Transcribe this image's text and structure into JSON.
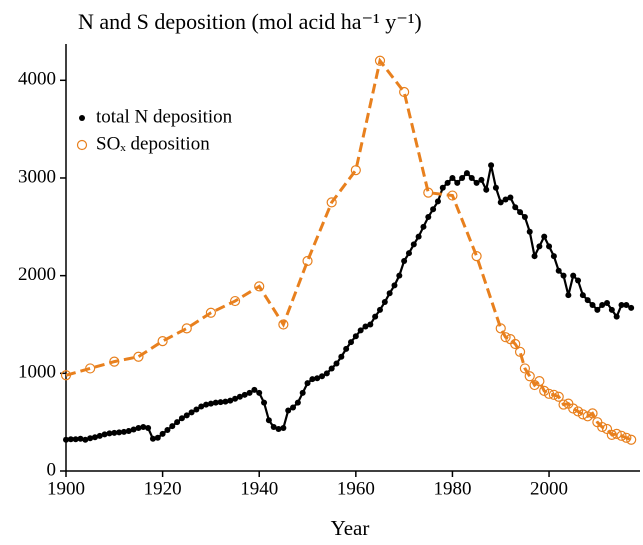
{
  "chart_data": {
    "type": "line",
    "title": "N and S deposition (mol acid ha⁻¹ y⁻¹)",
    "x_label": "Year",
    "xlim": [
      1900,
      2018
    ],
    "xticks": [
      1900,
      1920,
      1940,
      1960,
      1980,
      2000
    ],
    "ylim": [
      0,
      4300
    ],
    "yticks": [
      0,
      1000,
      2000,
      3000,
      4000
    ],
    "grid": false,
    "legend": "upper-left",
    "series": [
      {
        "name": "total N deposition",
        "color": "#000000",
        "marker": "filled",
        "line": "solid",
        "x": [
          1900,
          1901,
          1902,
          1903,
          1904,
          1905,
          1906,
          1907,
          1908,
          1909,
          1910,
          1911,
          1912,
          1913,
          1914,
          1915,
          1916,
          1917,
          1918,
          1919,
          1920,
          1921,
          1922,
          1923,
          1924,
          1925,
          1926,
          1927,
          1928,
          1929,
          1930,
          1931,
          1932,
          1933,
          1934,
          1935,
          1936,
          1937,
          1938,
          1939,
          1940,
          1941,
          1942,
          1943,
          1944,
          1945,
          1946,
          1947,
          1948,
          1949,
          1950,
          1951,
          1952,
          1953,
          1954,
          1955,
          1956,
          1957,
          1958,
          1959,
          1960,
          1961,
          1962,
          1963,
          1964,
          1965,
          1966,
          1967,
          1968,
          1969,
          1970,
          1971,
          1972,
          1973,
          1974,
          1975,
          1976,
          1977,
          1978,
          1979,
          1980,
          1981,
          1982,
          1983,
          1984,
          1985,
          1986,
          1987,
          1988,
          1989,
          1990,
          1991,
          1992,
          1993,
          1994,
          1995,
          1996,
          1997,
          1998,
          1999,
          2000,
          2001,
          2002,
          2003,
          2004,
          2005,
          2006,
          2007,
          2008,
          2009,
          2010,
          2011,
          2012,
          2013,
          2014,
          2015,
          2016,
          2017
        ],
        "values": [
          320,
          325,
          325,
          330,
          320,
          335,
          345,
          360,
          375,
          385,
          390,
          395,
          400,
          410,
          425,
          440,
          450,
          440,
          330,
          340,
          380,
          420,
          460,
          500,
          540,
          570,
          600,
          630,
          660,
          680,
          690,
          700,
          705,
          710,
          720,
          740,
          760,
          780,
          800,
          830,
          800,
          700,
          520,
          450,
          430,
          440,
          620,
          650,
          700,
          800,
          900,
          940,
          950,
          970,
          1000,
          1050,
          1100,
          1170,
          1250,
          1320,
          1380,
          1440,
          1480,
          1500,
          1580,
          1650,
          1730,
          1820,
          1900,
          2000,
          2150,
          2230,
          2320,
          2400,
          2500,
          2600,
          2680,
          2760,
          2900,
          2950,
          3000,
          2950,
          3000,
          3050,
          3000,
          2950,
          2980,
          2880,
          3130,
          2900,
          2750,
          2780,
          2800,
          2700,
          2650,
          2600,
          2450,
          2200,
          2300,
          2400,
          2300,
          2200,
          2050,
          2000,
          1800,
          2000,
          1950,
          1800,
          1750,
          1700,
          1650,
          1700,
          1720,
          1650,
          1580,
          1700,
          1700,
          1670
        ]
      },
      {
        "name": "SOₓ deposition",
        "color": "#e8801e",
        "marker": "hollow",
        "line": "dashed",
        "x": [
          1900,
          1905,
          1910,
          1915,
          1920,
          1925,
          1930,
          1935,
          1940,
          1945,
          1950,
          1955,
          1960,
          1965,
          1970,
          1975,
          1980,
          1985,
          1990,
          1991,
          1992,
          1993,
          1994,
          1995,
          1996,
          1997,
          1998,
          1999,
          2000,
          2001,
          2002,
          2003,
          2004,
          2005,
          2006,
          2007,
          2008,
          2009,
          2010,
          2011,
          2012,
          2013,
          2014,
          2015,
          2016,
          2017
        ],
        "values": [
          980,
          1050,
          1120,
          1170,
          1330,
          1460,
          1620,
          1740,
          1890,
          1500,
          2150,
          2750,
          3080,
          4200,
          3880,
          2850,
          2820,
          2200,
          1460,
          1370,
          1350,
          1300,
          1220,
          1050,
          970,
          880,
          920,
          820,
          790,
          780,
          760,
          680,
          690,
          640,
          610,
          580,
          560,
          590,
          500,
          450,
          430,
          370,
          380,
          360,
          340,
          320
        ]
      }
    ]
  }
}
